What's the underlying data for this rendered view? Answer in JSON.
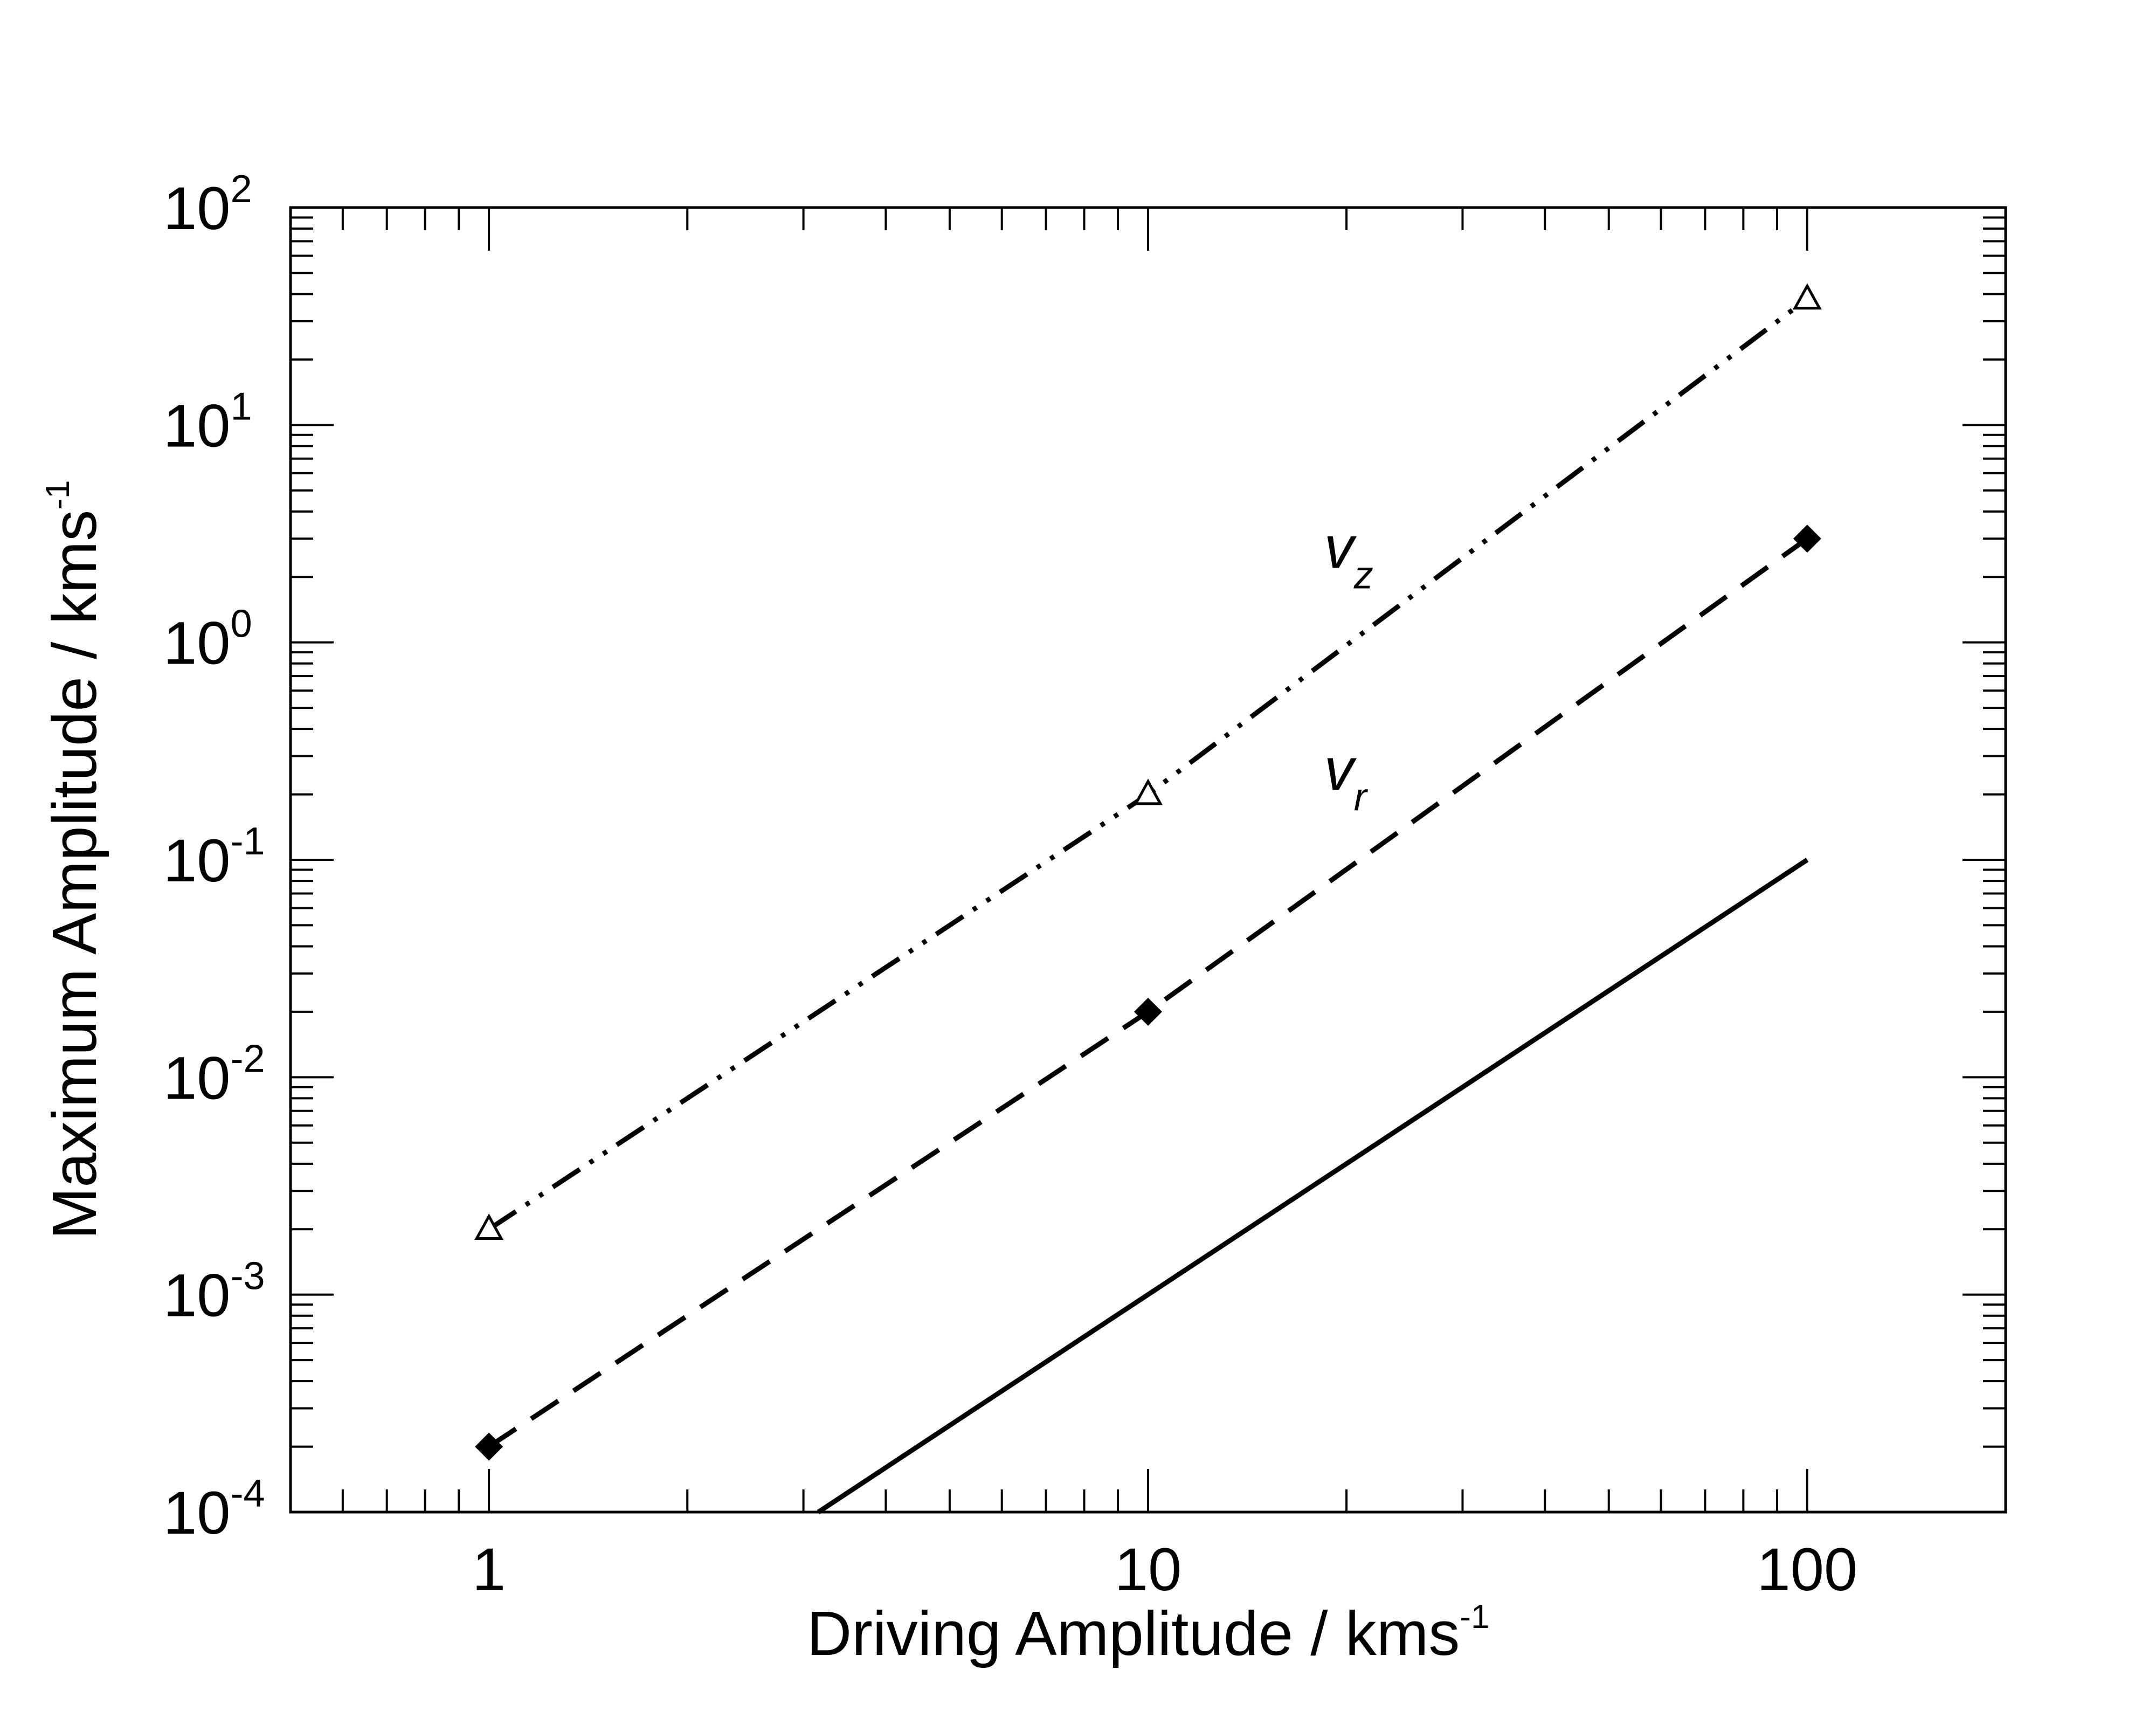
{
  "chart_data": {
    "type": "line",
    "title": "",
    "xlabel": "Driving Amplitude / kms",
    "xlabel_sup": "-1",
    "ylabel": "Maximum Amplitude / kms",
    "ylabel_sup": "-1",
    "xscale": "log",
    "yscale": "log",
    "xlim": [
      0.5,
      200
    ],
    "ylim": [
      0.0001,
      100
    ],
    "grid": false,
    "legend": "none",
    "x_ticks": [
      {
        "value": 1,
        "label": "1"
      },
      {
        "value": 10,
        "label": "10"
      },
      {
        "value": 100,
        "label": "100"
      }
    ],
    "y_ticks": [
      {
        "value": 0.0001,
        "base": "10",
        "exp": "-4"
      },
      {
        "value": 0.001,
        "base": "10",
        "exp": "-3"
      },
      {
        "value": 0.01,
        "base": "10",
        "exp": "-2"
      },
      {
        "value": 0.1,
        "base": "10",
        "exp": "-1"
      },
      {
        "value": 1,
        "base": "10",
        "exp": "0"
      },
      {
        "value": 10,
        "base": "10",
        "exp": "1"
      },
      {
        "value": 100,
        "base": "10",
        "exp": "2"
      }
    ],
    "series": [
      {
        "key": "vz",
        "label_main": "v",
        "label_sub": "z",
        "label_at": {
          "x": 18.5,
          "y": 2.2
        },
        "style": "dash-dot-dot",
        "marker": "open-triangle",
        "color": "#000000",
        "x": [
          1,
          10,
          100
        ],
        "y": [
          0.002,
          0.2,
          38
        ]
      },
      {
        "key": "vr",
        "label_main": "v",
        "label_sub": "r",
        "label_at": {
          "x": 18.5,
          "y": 0.21
        },
        "style": "dashed",
        "marker": "filled-diamond",
        "color": "#000000",
        "x": [
          1,
          10,
          100
        ],
        "y": [
          0.0002,
          0.02,
          3
        ]
      },
      {
        "key": "reference",
        "style": "solid",
        "marker": "none",
        "color": "#000000",
        "x": [
          3.16,
          100
        ],
        "y": [
          0.0001,
          0.1
        ]
      }
    ]
  }
}
